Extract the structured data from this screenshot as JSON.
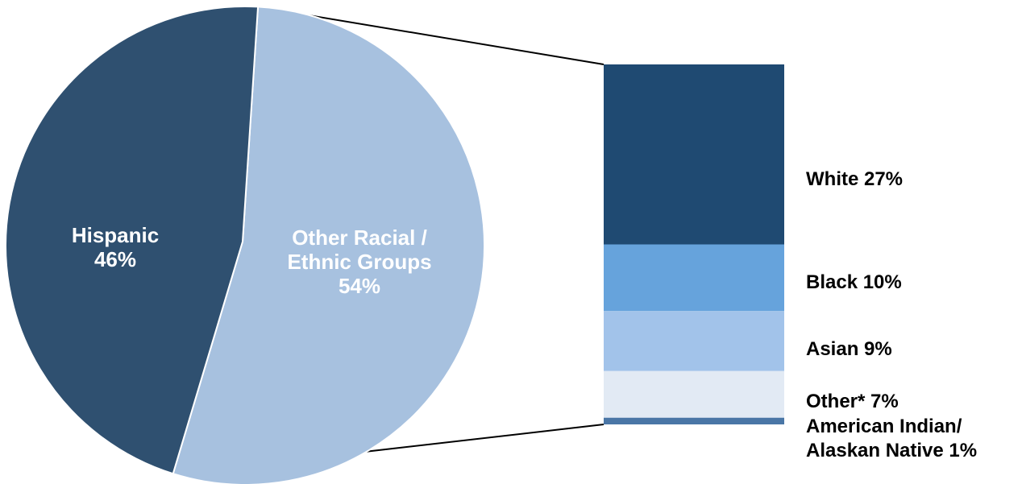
{
  "chart_data": {
    "type": "pie",
    "subtype": "bar-of-pie",
    "pie": {
      "slices": [
        {
          "label_lines": [
            "Hispanic",
            "46%"
          ],
          "name": "Hispanic",
          "value": 46,
          "color": "#2f5070",
          "label_color": "#ffffff"
        },
        {
          "label_lines": [
            "Other Racial /",
            "Ethnic Groups",
            "54%"
          ],
          "name": "Other Racial / Ethnic Groups",
          "value": 54,
          "color": "#a7c1df",
          "label_color": "#ffffff"
        }
      ]
    },
    "breakdown_bar": {
      "segments": [
        {
          "label_lines": [
            "White 27%"
          ],
          "name": "White",
          "value": 27,
          "color": "#1f4a72"
        },
        {
          "label_lines": [
            "Black 10%"
          ],
          "name": "Black",
          "value": 10,
          "color": "#66a3dc"
        },
        {
          "label_lines": [
            "Asian 9%"
          ],
          "name": "Asian",
          "value": 9,
          "color": "#a2c3ea"
        },
        {
          "label_lines": [
            "Other* 7%"
          ],
          "name": "Other*",
          "value": 7,
          "color": "#e2eaf4"
        },
        {
          "label_lines": [
            "American Indian/",
            "Alaskan Native 1%"
          ],
          "name": "American Indian/ Alaskan Native",
          "value": 1,
          "color": "#4a76a6"
        }
      ]
    },
    "connector_color": "#000000"
  }
}
